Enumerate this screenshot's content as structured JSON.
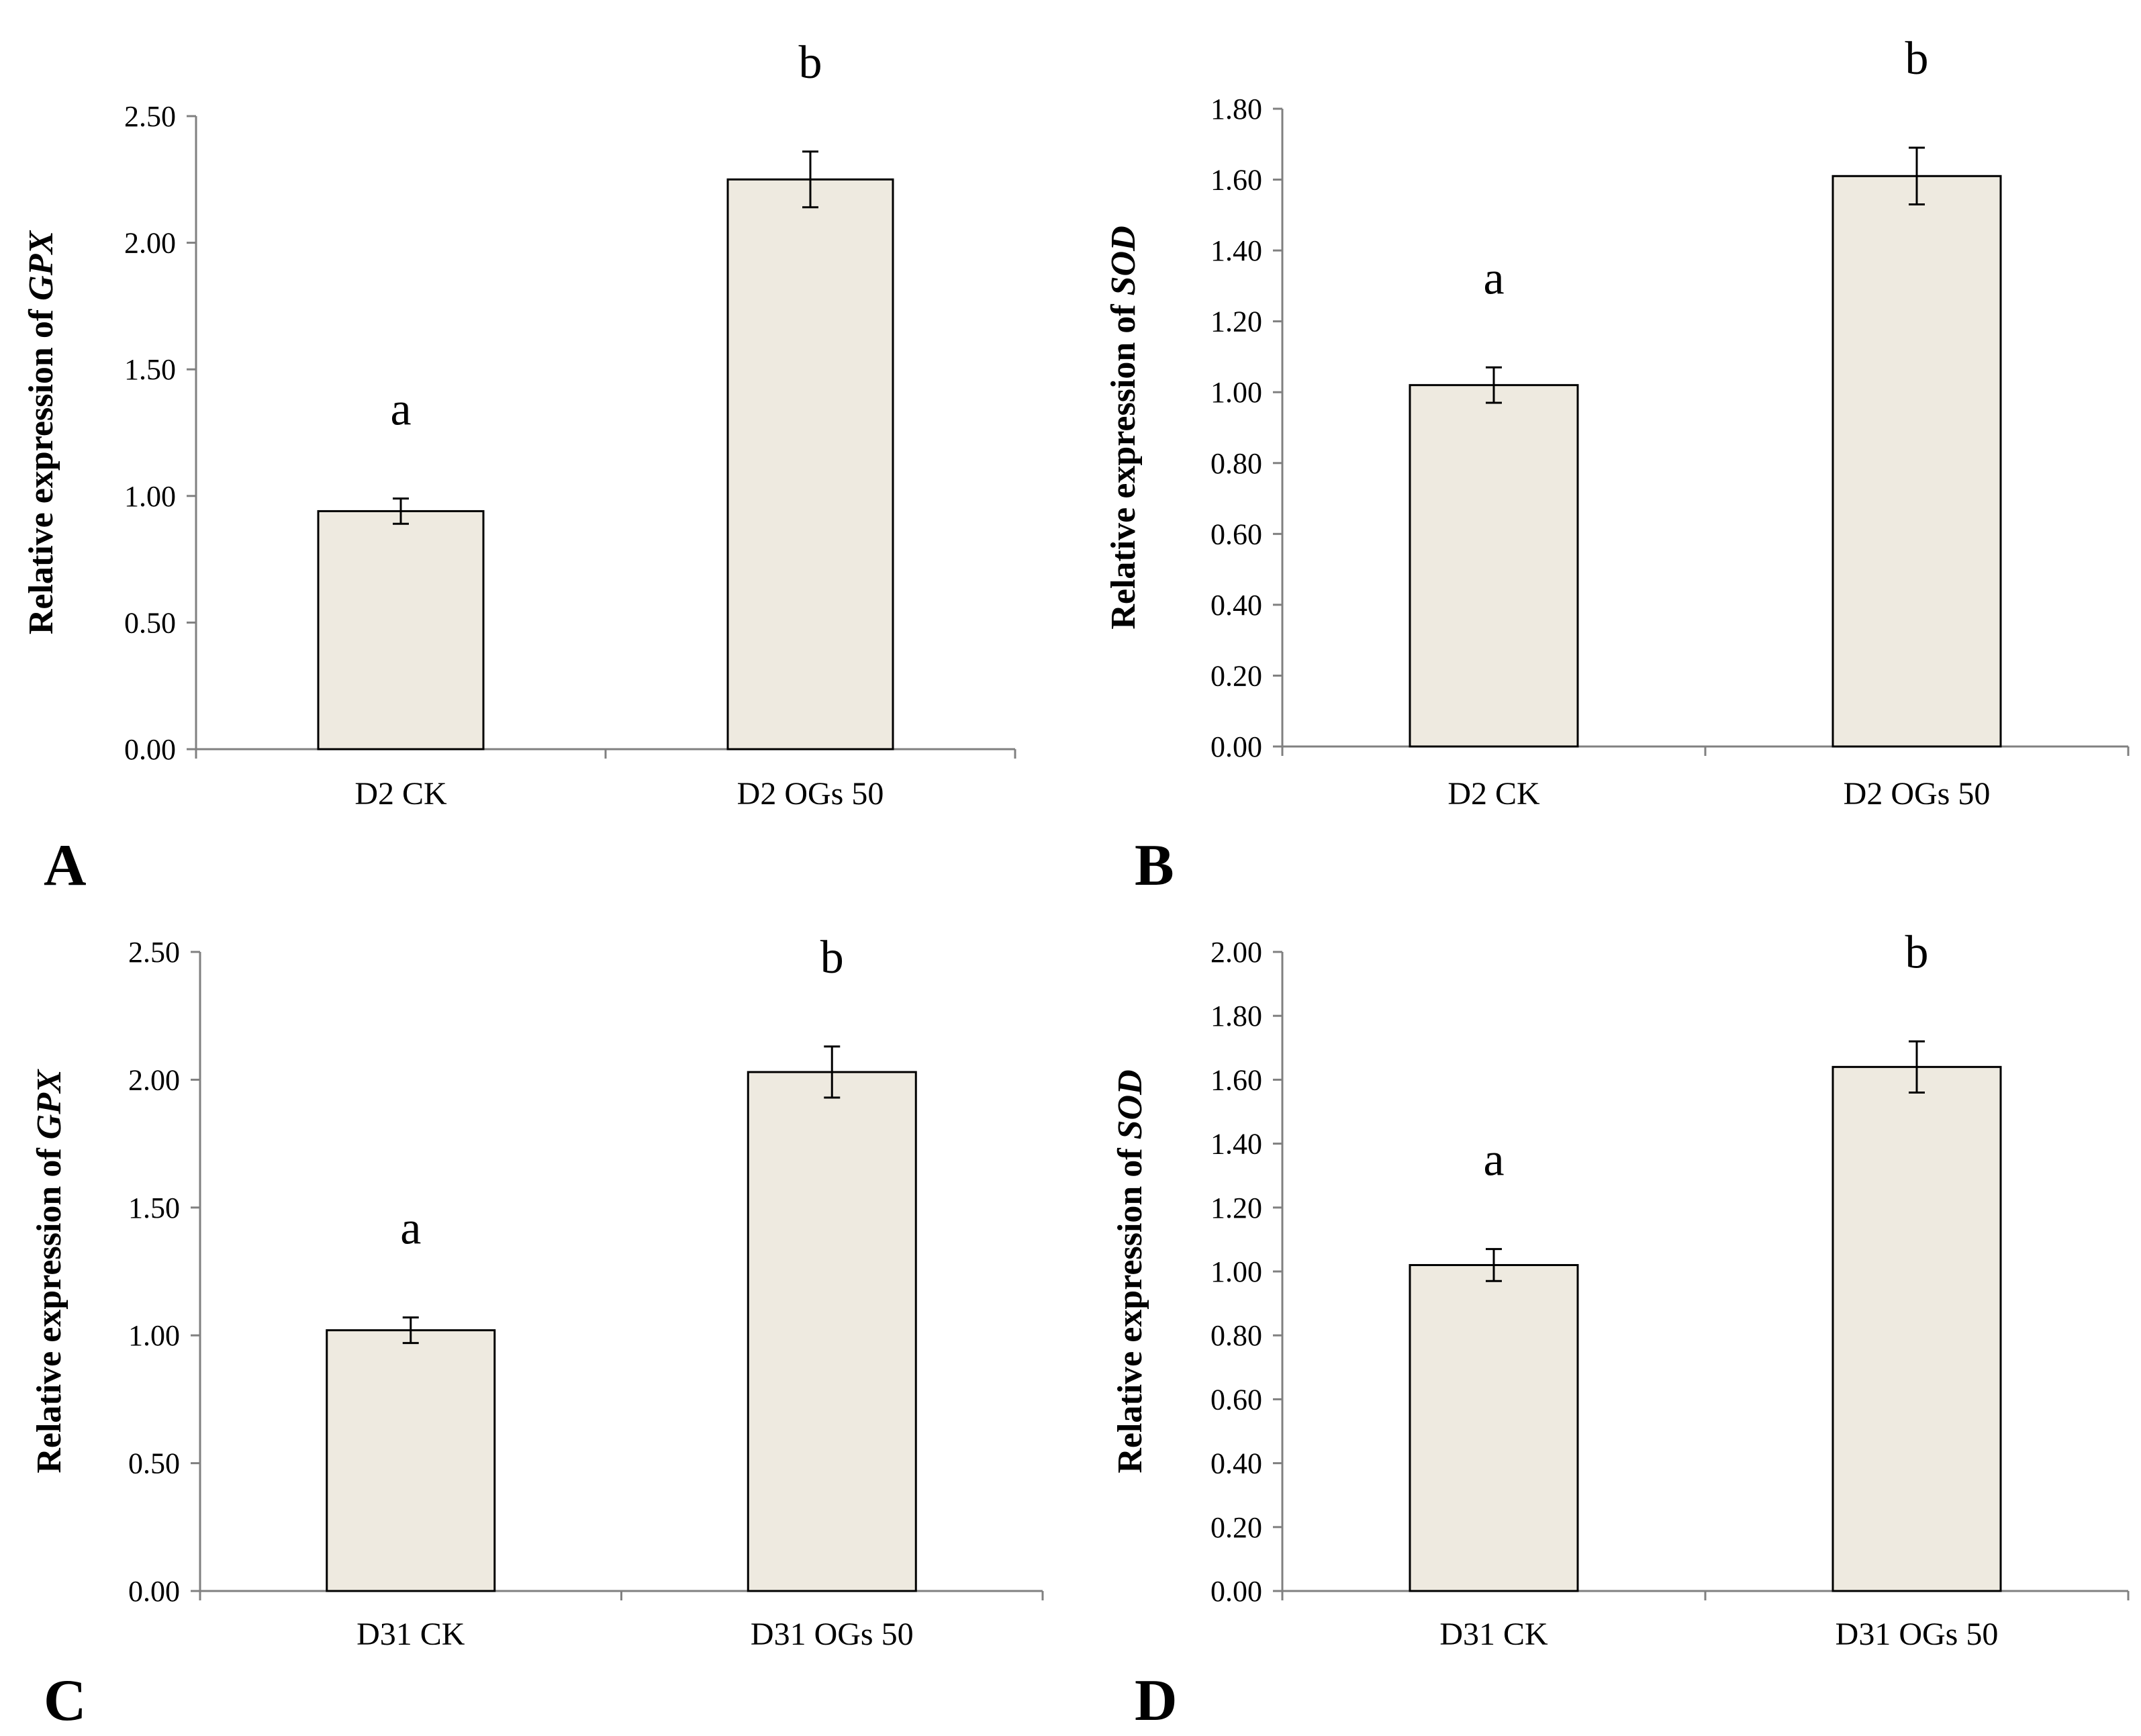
{
  "chart_data": [
    {
      "type": "bar",
      "panel": "A",
      "ylabel_prefix": "Relative expression of ",
      "ylabel_gene": "GPX",
      "categories": [
        "D2 CK",
        "D2 OGs 50"
      ],
      "values": [
        0.94,
        2.25
      ],
      "errors": [
        0.05,
        0.11
      ],
      "significance": [
        "a",
        "b"
      ],
      "ylim": [
        0,
        2.5
      ],
      "yticks": [
        "0.00",
        "0.50",
        "1.00",
        "1.50",
        "2.00",
        "2.50"
      ],
      "bar_color": "#eeeae0"
    },
    {
      "type": "bar",
      "panel": "B",
      "ylabel_prefix": "Relative expression of ",
      "ylabel_gene": "SOD",
      "categories": [
        "D2 CK",
        "D2 OGs 50"
      ],
      "values": [
        1.02,
        1.61
      ],
      "errors": [
        0.05,
        0.08
      ],
      "significance": [
        "a",
        "b"
      ],
      "ylim": [
        0,
        1.8
      ],
      "yticks": [
        "0.00",
        "0.20",
        "0.40",
        "0.60",
        "0.80",
        "1.00",
        "1.20",
        "1.40",
        "1.60",
        "1.80"
      ],
      "bar_color": "#eeeae0"
    },
    {
      "type": "bar",
      "panel": "C",
      "ylabel_prefix": "Relative expression of ",
      "ylabel_gene": "GPX",
      "categories": [
        "D31 CK",
        "D31 OGs 50"
      ],
      "values": [
        1.02,
        2.03
      ],
      "errors": [
        0.05,
        0.1
      ],
      "significance": [
        "a",
        "b"
      ],
      "ylim": [
        0,
        2.5
      ],
      "yticks": [
        "0.00",
        "0.50",
        "1.00",
        "1.50",
        "2.00",
        "2.50"
      ],
      "bar_color": "#eeeae0"
    },
    {
      "type": "bar",
      "panel": "D",
      "ylabel_prefix": "Relative expression of ",
      "ylabel_gene": "SOD",
      "categories": [
        "D31 CK",
        "D31 OGs 50"
      ],
      "values": [
        1.02,
        1.64
      ],
      "errors": [
        0.05,
        0.08
      ],
      "significance": [
        "a",
        "b"
      ],
      "ylim": [
        0,
        2.0
      ],
      "yticks": [
        "0.00",
        "0.20",
        "0.40",
        "0.60",
        "0.80",
        "1.00",
        "1.20",
        "1.40",
        "1.60",
        "1.80",
        "2.00"
      ],
      "bar_color": "#eeeae0"
    }
  ]
}
